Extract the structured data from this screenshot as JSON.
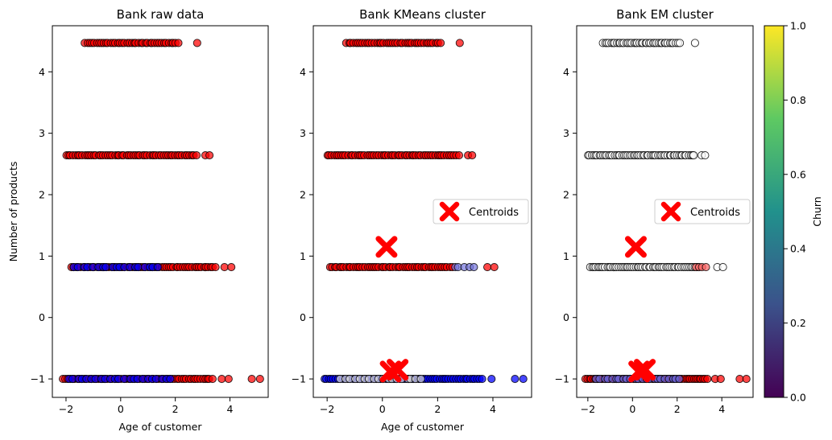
{
  "chart_data": [
    {
      "type": "scatter",
      "title": "Bank raw data",
      "xlabel": "Age of customer",
      "ylabel": "Number of products",
      "xlim": [
        -2.5,
        5.4
      ],
      "ylim": [
        -1.3,
        4.75
      ],
      "xticks": [
        -2,
        0,
        2,
        4
      ],
      "yticks": [
        -1,
        0,
        1,
        2,
        3,
        4
      ],
      "grid": false,
      "marker_edge_color": "#000000",
      "series": [
        {
          "y": 4.47,
          "color": "#ff0000",
          "x_start": -1.3,
          "x_end": 2.1,
          "outliers": [
            2.8
          ]
        },
        {
          "y": 2.64,
          "color": "#ff0000",
          "x_start": -2.0,
          "x_end": 2.8,
          "outliers": [
            3.1,
            3.25
          ]
        },
        {
          "y": 0.82,
          "color": "#ff0000",
          "x_start": -1.8,
          "x_end": 3.5,
          "outliers": [
            3.8,
            4.05
          ],
          "overlay": {
            "color": "#0000ff",
            "x_start": -1.7,
            "x_end": 1.5
          }
        },
        {
          "y": -1.0,
          "color": "#ff0000",
          "x_start": -2.1,
          "x_end": 3.4,
          "outliers": [
            3.7,
            3.95,
            4.8,
            5.1
          ],
          "overlay": {
            "color": "#0000ff",
            "x_start": -1.9,
            "x_end": 2.0
          }
        }
      ]
    },
    {
      "type": "scatter",
      "title": "Bank KMeans cluster",
      "xlabel": "Age of customer",
      "ylabel": "",
      "xlim": [
        -2.5,
        5.4
      ],
      "ylim": [
        -1.3,
        4.75
      ],
      "xticks": [
        -2,
        0,
        2,
        4
      ],
      "yticks": [
        -1,
        0,
        1,
        2,
        3,
        4
      ],
      "grid": false,
      "legend": {
        "label": "Centroids",
        "placement": "center-right"
      },
      "centroids": [
        [
          0.15,
          1.15
        ],
        [
          0.3,
          -0.88
        ],
        [
          0.55,
          -0.85
        ]
      ],
      "centroid_color": "#ff0000",
      "series": [
        {
          "y": 4.47,
          "color": "#ff0000",
          "x_start": -1.3,
          "x_end": 2.1,
          "outliers": [
            2.8
          ]
        },
        {
          "y": 2.64,
          "color": "#ff0000",
          "x_start": -2.0,
          "x_end": 2.8,
          "outliers": [
            3.1,
            3.25
          ]
        },
        {
          "y": 0.82,
          "color": "#ff0000",
          "x_start": -1.9,
          "x_end": 2.6,
          "outliers": [
            3.8,
            4.05
          ],
          "overlay": {
            "color": "#7777dd",
            "x_start": 2.6,
            "x_end": 3.4
          }
        },
        {
          "y": -1.0,
          "color": "#0000ff",
          "x_start": -2.1,
          "x_end": 3.6,
          "outliers": [
            3.95,
            4.8,
            5.1
          ],
          "overlay": {
            "color": "#dddddd",
            "x_start": -1.5,
            "x_end": 1.5
          }
        }
      ]
    },
    {
      "type": "scatter",
      "title": "Bank EM cluster",
      "xlabel": "",
      "ylabel": "",
      "xlim": [
        -2.5,
        5.4
      ],
      "ylim": [
        -1.3,
        4.75
      ],
      "xticks": [
        -2,
        0,
        2,
        4
      ],
      "yticks": [
        -1,
        0,
        1,
        2,
        3,
        4
      ],
      "grid": false,
      "legend": {
        "label": "Centroids",
        "placement": "center-right"
      },
      "centroids": [
        [
          0.15,
          1.15
        ],
        [
          0.3,
          -0.88
        ],
        [
          0.55,
          -0.85
        ]
      ],
      "centroid_color": "#ff0000",
      "series": [
        {
          "y": 4.47,
          "color": "#ffffff",
          "x_start": -1.3,
          "x_end": 2.1,
          "outliers": [
            2.8
          ]
        },
        {
          "y": 2.64,
          "color": "#ffffff",
          "x_start": -2.0,
          "x_end": 2.8,
          "outliers": [
            3.1,
            3.25
          ]
        },
        {
          "y": 0.82,
          "color": "#ffffff",
          "x_start": -1.9,
          "x_end": 3.0,
          "outliers": [
            3.8,
            4.05
          ],
          "overlay": {
            "color": "#ff6666",
            "x_start": 2.8,
            "x_end": 3.4
          }
        },
        {
          "y": -1.0,
          "color": "#ff0000",
          "x_start": -2.1,
          "x_end": 3.4,
          "outliers": [
            3.7,
            3.95,
            4.8,
            5.1
          ],
          "overlay": {
            "color": "#6666dd",
            "x_start": -1.6,
            "x_end": 2.2
          }
        }
      ]
    }
  ],
  "colorbar": {
    "label": "Churn",
    "colormap": "viridis",
    "range": [
      0.0,
      1.0
    ],
    "ticks": [
      "0.0",
      "0.2",
      "0.4",
      "0.6",
      "0.8",
      "1.0"
    ],
    "stops": [
      "#440154",
      "#3b528b",
      "#21918c",
      "#5ec962",
      "#fde725"
    ]
  }
}
